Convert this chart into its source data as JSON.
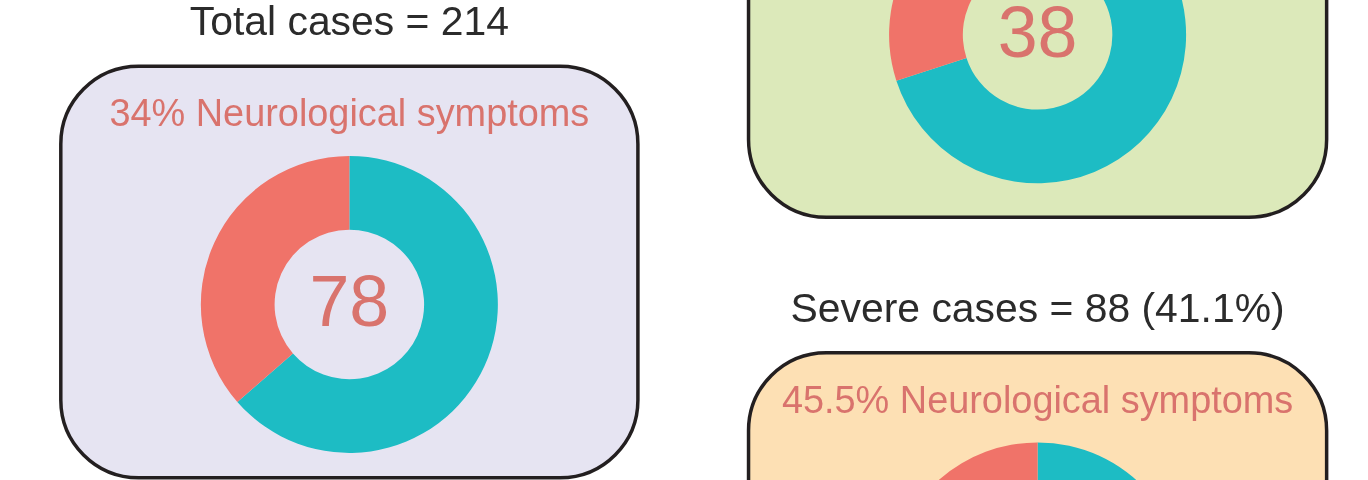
{
  "chart_data": [
    {
      "type": "donut",
      "title": "Total cases = 214",
      "subtitle": "34% Neurological symptoms",
      "annotations": [
        "78"
      ],
      "categories": [
        null,
        null
      ],
      "values": [
        63.6,
        36.4
      ],
      "colors": [
        "#1dbcc4",
        "#f07369"
      ]
    },
    {
      "type": "donut",
      "annotations": [
        "38"
      ],
      "categories": [
        null,
        null
      ],
      "values": [
        70,
        30
      ],
      "colors": [
        "#1dbcc4",
        "#f07369"
      ]
    },
    {
      "type": "donut",
      "title": "Severe cases = 88 (41.1%)",
      "subtitle": "45.5% Neurological symptoms",
      "categories": [
        null,
        null
      ],
      "values": [
        54.5,
        45.5
      ],
      "colors": [
        "#1dbcc4",
        "#f07369"
      ]
    }
  ]
}
